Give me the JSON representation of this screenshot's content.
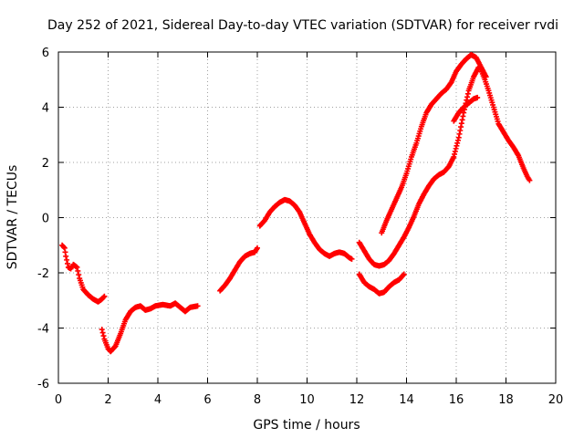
{
  "chart_data": {
    "type": "scatter",
    "title": "Day 252 of 2021, Sidereal Day-to-day VTEC variation (SDTVAR) for receiver rvdi",
    "xlabel": "GPS time / hours",
    "ylabel": "SDTVAR / TECUs",
    "xlim": [
      0,
      20
    ],
    "ylim": [
      -6,
      6
    ],
    "xticks": [
      0,
      2,
      4,
      6,
      8,
      10,
      12,
      14,
      16,
      18,
      20
    ],
    "yticks": [
      -6,
      -4,
      -2,
      0,
      2,
      4,
      6
    ],
    "grid": true,
    "marker": "plus",
    "series_color": "#ff0000",
    "series": [
      {
        "name": "segment-1",
        "points": [
          [
            0.15,
            -1.0
          ],
          [
            0.25,
            -1.1
          ],
          [
            0.3,
            -1.4
          ],
          [
            0.4,
            -1.8
          ],
          [
            0.5,
            -1.85
          ],
          [
            0.6,
            -1.7
          ],
          [
            0.75,
            -1.8
          ],
          [
            0.85,
            -2.2
          ],
          [
            1.0,
            -2.6
          ],
          [
            1.2,
            -2.8
          ],
          [
            1.4,
            -2.95
          ],
          [
            1.6,
            -3.05
          ],
          [
            1.75,
            -2.95
          ],
          [
            1.85,
            -2.85
          ]
        ]
      },
      {
        "name": "segment-2",
        "points": [
          [
            1.75,
            -4.05
          ],
          [
            1.85,
            -4.4
          ],
          [
            2.0,
            -4.75
          ],
          [
            2.1,
            -4.85
          ],
          [
            2.3,
            -4.65
          ],
          [
            2.5,
            -4.2
          ],
          [
            2.7,
            -3.7
          ],
          [
            2.9,
            -3.4
          ],
          [
            3.1,
            -3.25
          ],
          [
            3.3,
            -3.2
          ],
          [
            3.5,
            -3.35
          ],
          [
            3.7,
            -3.3
          ],
          [
            3.9,
            -3.2
          ],
          [
            4.2,
            -3.15
          ],
          [
            4.5,
            -3.2
          ],
          [
            4.7,
            -3.1
          ],
          [
            4.9,
            -3.25
          ],
          [
            5.1,
            -3.4
          ],
          [
            5.3,
            -3.25
          ],
          [
            5.6,
            -3.2
          ]
        ]
      },
      {
        "name": "segment-3",
        "points": [
          [
            6.5,
            -2.65
          ],
          [
            6.7,
            -2.45
          ],
          [
            6.9,
            -2.2
          ],
          [
            7.1,
            -1.9
          ],
          [
            7.3,
            -1.6
          ],
          [
            7.5,
            -1.4
          ],
          [
            7.7,
            -1.3
          ],
          [
            7.9,
            -1.25
          ],
          [
            8.0,
            -1.1
          ]
        ]
      },
      {
        "name": "segment-4",
        "points": [
          [
            8.1,
            -0.3
          ],
          [
            8.3,
            -0.1
          ],
          [
            8.5,
            0.2
          ],
          [
            8.7,
            0.4
          ],
          [
            8.9,
            0.55
          ],
          [
            9.1,
            0.65
          ],
          [
            9.3,
            0.6
          ],
          [
            9.5,
            0.45
          ],
          [
            9.7,
            0.2
          ],
          [
            9.9,
            -0.2
          ],
          [
            10.1,
            -0.6
          ],
          [
            10.3,
            -0.9
          ],
          [
            10.5,
            -1.15
          ],
          [
            10.7,
            -1.3
          ],
          [
            10.9,
            -1.4
          ],
          [
            11.1,
            -1.3
          ],
          [
            11.3,
            -1.25
          ],
          [
            11.5,
            -1.3
          ],
          [
            11.7,
            -1.45
          ],
          [
            11.8,
            -1.5
          ]
        ]
      },
      {
        "name": "segment-5",
        "points": [
          [
            12.1,
            -0.9
          ],
          [
            12.3,
            -1.2
          ],
          [
            12.5,
            -1.5
          ],
          [
            12.7,
            -1.7
          ],
          [
            12.9,
            -1.75
          ],
          [
            13.1,
            -1.7
          ],
          [
            13.3,
            -1.55
          ],
          [
            13.5,
            -1.3
          ],
          [
            13.7,
            -1.0
          ],
          [
            13.9,
            -0.7
          ],
          [
            14.1,
            -0.35
          ],
          [
            14.3,
            0.05
          ],
          [
            14.5,
            0.5
          ],
          [
            14.7,
            0.85
          ],
          [
            14.9,
            1.15
          ],
          [
            15.1,
            1.4
          ],
          [
            15.3,
            1.55
          ],
          [
            15.5,
            1.65
          ],
          [
            15.7,
            1.85
          ],
          [
            15.9,
            2.2
          ],
          [
            16.1,
            2.9
          ],
          [
            16.3,
            3.8
          ],
          [
            16.5,
            4.6
          ],
          [
            16.7,
            5.1
          ],
          [
            16.9,
            5.45
          ],
          [
            17.0,
            5.35
          ],
          [
            17.15,
            5.0
          ],
          [
            17.3,
            4.6
          ],
          [
            17.5,
            4.0
          ],
          [
            17.7,
            3.4
          ],
          [
            17.9,
            3.1
          ],
          [
            18.1,
            2.8
          ],
          [
            18.3,
            2.55
          ],
          [
            18.5,
            2.25
          ],
          [
            18.7,
            1.8
          ],
          [
            18.85,
            1.5
          ],
          [
            18.95,
            1.35
          ]
        ]
      },
      {
        "name": "segment-6",
        "points": [
          [
            12.1,
            -2.05
          ],
          [
            12.3,
            -2.35
          ],
          [
            12.5,
            -2.5
          ],
          [
            12.7,
            -2.6
          ],
          [
            12.9,
            -2.75
          ],
          [
            13.1,
            -2.7
          ],
          [
            13.3,
            -2.5
          ],
          [
            13.5,
            -2.35
          ],
          [
            13.7,
            -2.25
          ],
          [
            13.9,
            -2.05
          ]
        ]
      },
      {
        "name": "segment-7",
        "points": [
          [
            13.0,
            -0.55
          ],
          [
            13.2,
            -0.1
          ],
          [
            13.4,
            0.3
          ],
          [
            13.6,
            0.7
          ],
          [
            13.8,
            1.1
          ],
          [
            14.0,
            1.6
          ],
          [
            14.2,
            2.2
          ],
          [
            14.4,
            2.7
          ],
          [
            14.6,
            3.3
          ],
          [
            14.8,
            3.8
          ],
          [
            15.0,
            4.1
          ],
          [
            15.2,
            4.3
          ],
          [
            15.4,
            4.5
          ],
          [
            15.6,
            4.65
          ],
          [
            15.8,
            4.9
          ],
          [
            16.0,
            5.3
          ],
          [
            16.2,
            5.55
          ],
          [
            16.4,
            5.75
          ],
          [
            16.6,
            5.9
          ],
          [
            16.8,
            5.8
          ],
          [
            17.0,
            5.45
          ],
          [
            17.2,
            5.1
          ]
        ]
      },
      {
        "name": "segment-8",
        "points": [
          [
            15.9,
            3.5
          ],
          [
            16.1,
            3.8
          ],
          [
            16.3,
            4.0
          ],
          [
            16.5,
            4.15
          ],
          [
            16.7,
            4.3
          ],
          [
            16.85,
            4.35
          ]
        ]
      }
    ]
  }
}
